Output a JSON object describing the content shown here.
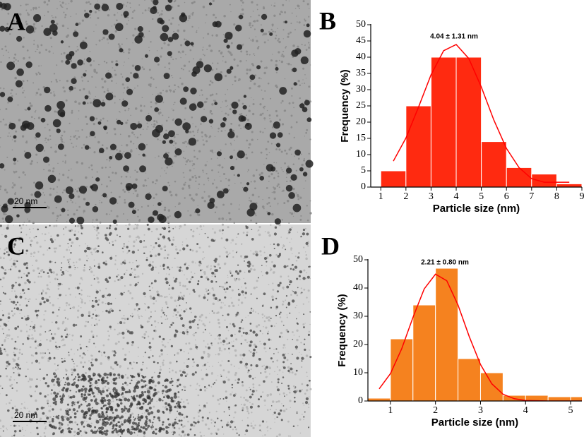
{
  "images": [
    {
      "label": "A",
      "scale_bar": "20 nm"
    },
    {
      "label": "C",
      "scale_bar": "20 nm"
    }
  ],
  "chart_data": [
    {
      "type": "histogram",
      "label": "B",
      "annotation": "4.04 ± 1.31 nm",
      "xlabel": "Particle size (nm)",
      "ylabel": "Frequency (%)",
      "color": "#ff2a10",
      "bins": [
        1,
        2,
        3,
        4,
        5,
        6,
        7,
        8,
        9
      ],
      "values": [
        5,
        25,
        40,
        40,
        14,
        6,
        4,
        1
      ],
      "fit": {
        "color": "#ff0000",
        "x": [
          1.5,
          2,
          2.5,
          3,
          3.5,
          4,
          4.5,
          5,
          5.5,
          6,
          6.5,
          7,
          7.5,
          8,
          8.5
        ],
        "values": [
          8.0,
          15.1,
          24.6,
          34.6,
          42.0,
          43.9,
          39.6,
          30.8,
          20.6,
          11.9,
          6.0,
          2.6,
          1.5,
          1.5,
          1.5
        ]
      },
      "xlim": [
        0.6,
        9
      ],
      "ylim": [
        0,
        50
      ],
      "xticks": [
        1,
        2,
        3,
        4,
        5,
        6,
        7,
        8,
        9
      ],
      "yticks": [
        0,
        5,
        10,
        15,
        20,
        25,
        30,
        35,
        40,
        45,
        50
      ]
    },
    {
      "type": "histogram",
      "label": "D",
      "annotation": "2.21 ± 0.80 nm",
      "xlabel": "Particle size (nm)",
      "ylabel": "Frequency (%)",
      "color": "#f5821f",
      "bins": [
        0.5,
        1,
        1.5,
        2,
        2.5,
        3,
        3.5,
        4,
        4.5,
        5,
        5.5
      ],
      "values": [
        1,
        22,
        34,
        47,
        15,
        10,
        2,
        2,
        1.5,
        1.5
      ],
      "fit": {
        "color": "#ff0000",
        "x": [
          0.75,
          1,
          1.25,
          1.5,
          1.75,
          2,
          2.25,
          2.5,
          2.75,
          3,
          3.25,
          3.5,
          3.75,
          4,
          4.5,
          5,
          5.25
        ],
        "values": [
          4.3,
          9.7,
          18.5,
          29.6,
          39.7,
          44.9,
          42.6,
          34.0,
          22.8,
          12.9,
          6.1,
          2.4,
          0.8,
          0.2,
          0,
          0,
          0
        ]
      },
      "xlim": [
        0.5,
        5.25
      ],
      "ylim": [
        0,
        50
      ],
      "xticks": [
        1,
        2,
        3,
        4,
        5
      ],
      "yticks": [
        0,
        10,
        20,
        30,
        40,
        50
      ]
    }
  ]
}
